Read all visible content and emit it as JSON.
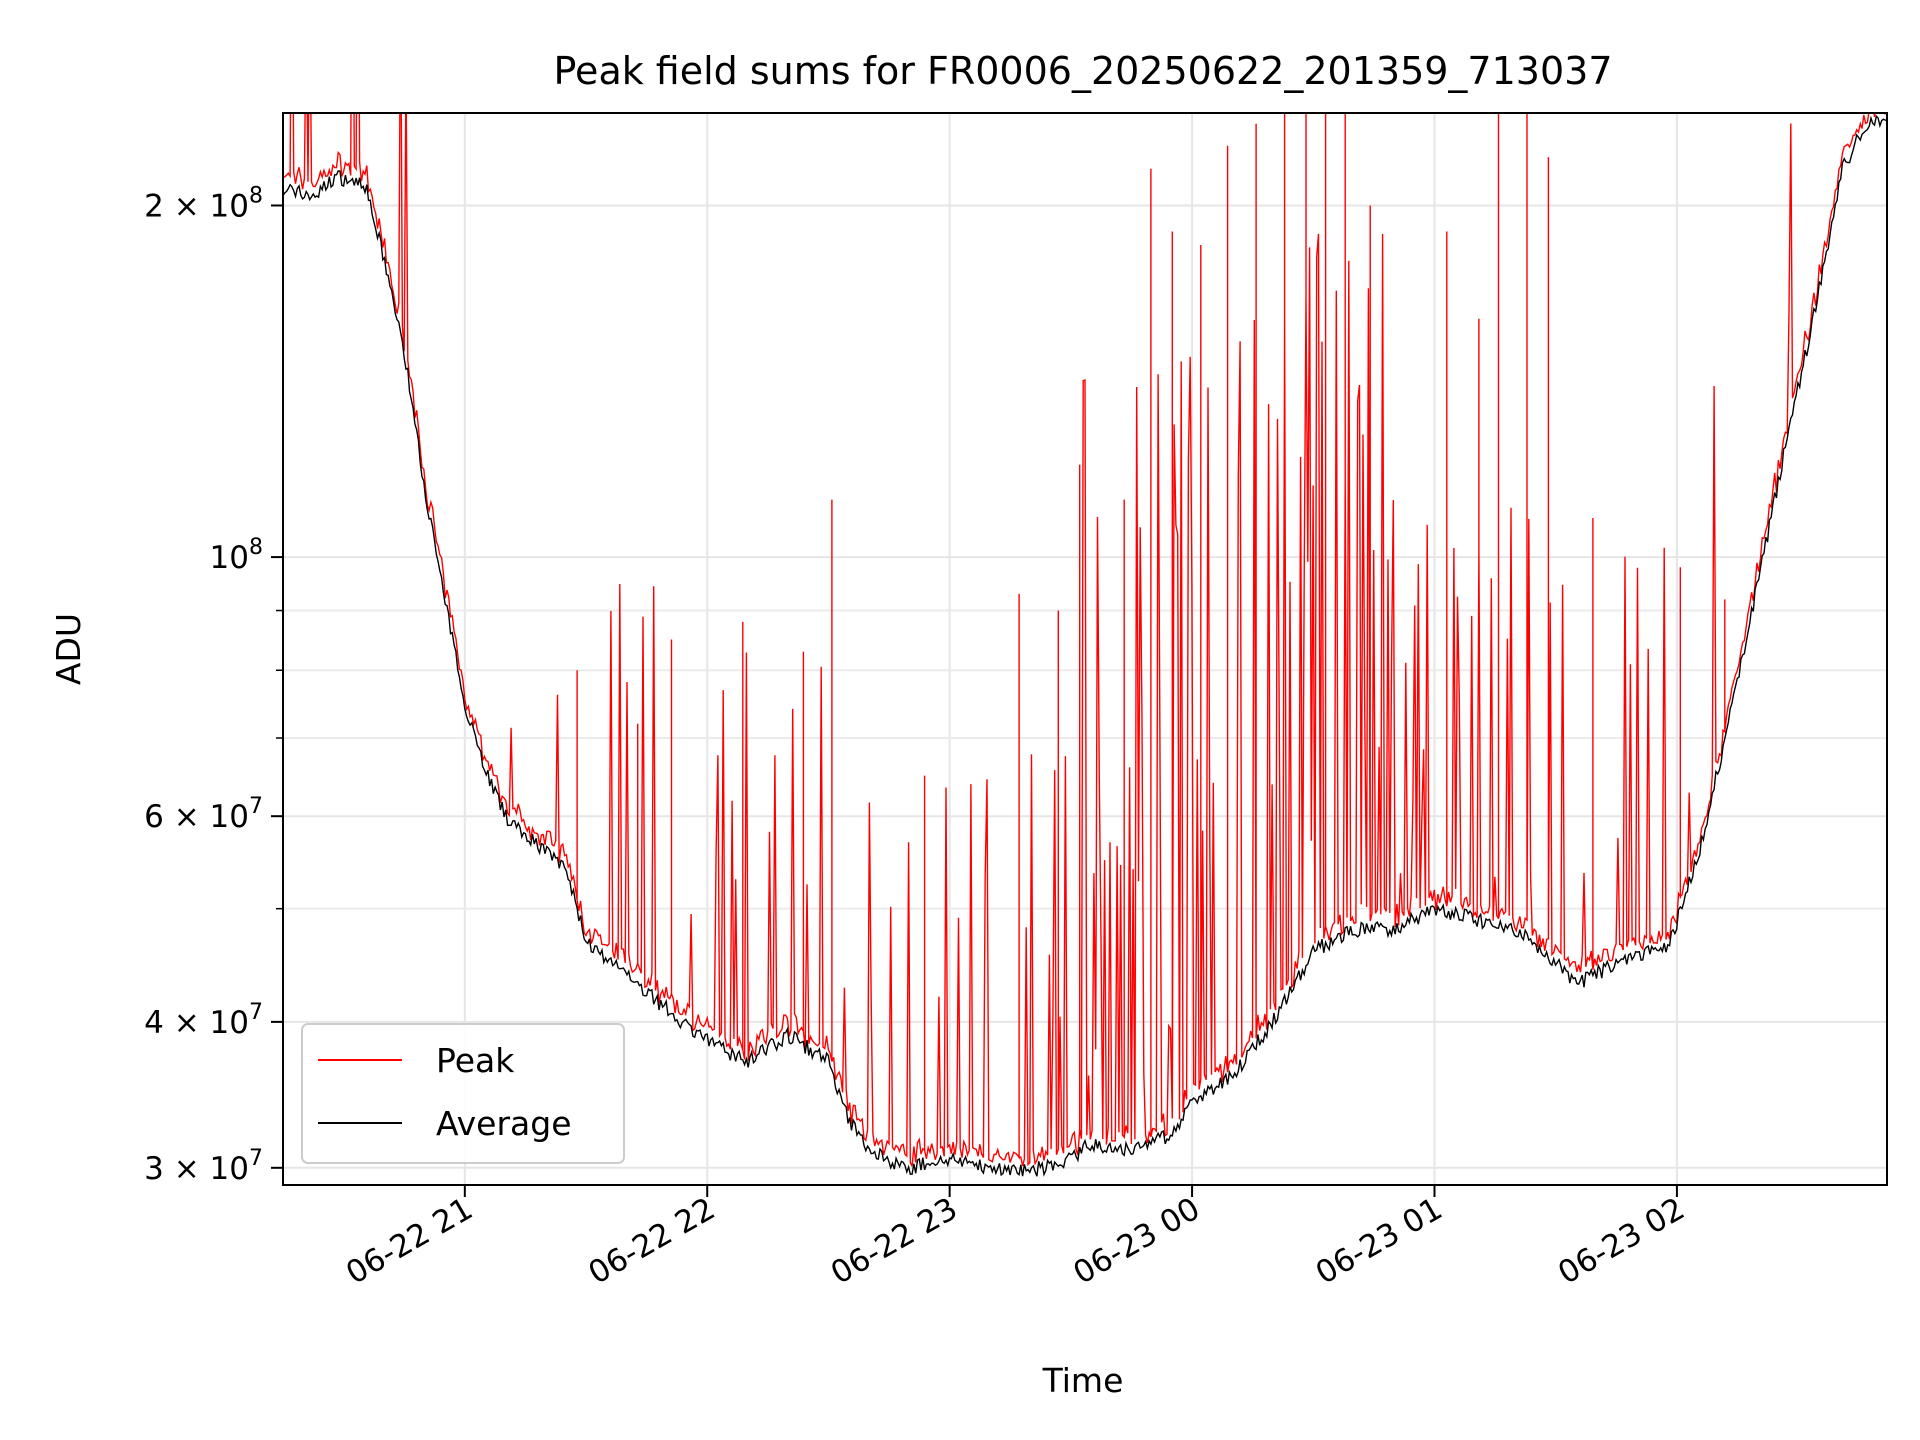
{
  "chart_data": {
    "type": "line",
    "title": "Peak field sums for FR0006_20250622_201359_713037",
    "xlabel": "Time",
    "ylabel": "ADU",
    "yscale": "log",
    "ylim": [
      29000000,
      240000000
    ],
    "xlim": [
      "2025-06-22 20:15",
      "2025-06-23 02:52"
    ],
    "grid": true,
    "legend_position": "lower-left",
    "x_ticks": [
      {
        "t": "2025-06-22 21:00",
        "label": "06-22 21"
      },
      {
        "t": "2025-06-22 22:00",
        "label": "06-22 22"
      },
      {
        "t": "2025-06-22 23:00",
        "label": "06-22 23"
      },
      {
        "t": "2025-06-23 00:00",
        "label": "06-23 00"
      },
      {
        "t": "2025-06-23 01:00",
        "label": "06-23 01"
      },
      {
        "t": "2025-06-23 02:00",
        "label": "06-23 02"
      }
    ],
    "y_ticks": [
      {
        "value": 30000000,
        "mant": "3",
        "exp": "7"
      },
      {
        "value": 40000000,
        "mant": "4",
        "exp": "7"
      },
      {
        "value": 60000000,
        "mant": "6",
        "exp": "7"
      },
      {
        "value": 100000000,
        "mant": "",
        "exp": "8"
      },
      {
        "value": 200000000,
        "mant": "2",
        "exp": "8"
      }
    ],
    "y_minor_ticks": [
      50000000,
      70000000,
      80000000,
      90000000
    ],
    "series": [
      {
        "name": "Peak",
        "color": "#ff0000",
        "baseline_of": "Average",
        "spikes": [
          [
            "2025-06-22 21:28",
            80000000
          ],
          [
            "2025-06-22 21:43",
            72000000
          ],
          [
            "2025-06-22 21:51",
            85000000
          ],
          [
            "2025-06-22 22:09",
            88000000
          ],
          [
            "2025-06-22 22:24",
            83000000
          ],
          [
            "2025-06-22 22:31",
            112000000
          ],
          [
            "2025-06-22 22:54",
            65000000
          ],
          [
            "2025-06-22 23:17",
            93000000
          ],
          [
            "2025-06-22 23:27",
            90000000
          ],
          [
            "2025-06-22 23:32",
            120000000
          ],
          [
            "2025-06-22 23:43",
            112000000
          ],
          [
            "2025-06-22 23:50",
            215000000
          ],
          [
            "2025-06-22 23:55",
            190000000
          ],
          [
            "2025-06-23 00:02",
            185000000
          ],
          [
            "2025-06-23 00:09",
            225000000
          ],
          [
            "2025-06-23 00:16",
            235000000
          ],
          [
            "2025-06-23 00:23",
            240000000
          ],
          [
            "2025-06-23 00:28",
            240000000
          ],
          [
            "2025-06-23 00:33",
            240000000
          ],
          [
            "2025-06-23 00:38",
            240000000
          ],
          [
            "2025-06-23 00:44",
            200000000
          ],
          [
            "2025-06-23 01:03",
            190000000
          ],
          [
            "2025-06-23 01:11",
            160000000
          ],
          [
            "2025-06-23 01:16",
            240000000
          ],
          [
            "2025-06-23 01:23",
            240000000
          ],
          [
            "2025-06-23 01:28",
            220000000
          ],
          [
            "2025-06-23 01:39",
            108000000
          ],
          [
            "2025-06-23 01:47",
            95000000
          ],
          [
            "2025-06-23 02:01",
            98000000
          ],
          [
            "2025-06-23 02:12",
            92000000
          ]
        ]
      },
      {
        "name": "Average",
        "color": "#000000",
        "points": [
          [
            "2025-06-22 20:15",
            207000000
          ],
          [
            "2025-06-22 20:18",
            206000000
          ],
          [
            "2025-06-22 20:21",
            204000000
          ],
          [
            "2025-06-22 20:24",
            205000000
          ],
          [
            "2025-06-22 20:28",
            212000000
          ],
          [
            "2025-06-22 20:32",
            210000000
          ],
          [
            "2025-06-22 20:35",
            210000000
          ],
          [
            "2025-06-22 20:40",
            180000000
          ],
          [
            "2025-06-22 20:45",
            150000000
          ],
          [
            "2025-06-22 20:50",
            115000000
          ],
          [
            "2025-06-22 20:55",
            92000000
          ],
          [
            "2025-06-22 21:00",
            75000000
          ],
          [
            "2025-06-22 21:05",
            66000000
          ],
          [
            "2025-06-22 21:10",
            60000000
          ],
          [
            "2025-06-22 21:15",
            58000000
          ],
          [
            "2025-06-22 21:20",
            56000000
          ],
          [
            "2025-06-22 21:25",
            54000000
          ],
          [
            "2025-06-22 21:30",
            47000000
          ],
          [
            "2025-06-22 21:35",
            45000000
          ],
          [
            "2025-06-22 21:40",
            44000000
          ],
          [
            "2025-06-22 21:50",
            41000000
          ],
          [
            "2025-06-22 22:00",
            38500000
          ],
          [
            "2025-06-22 22:10",
            37000000
          ],
          [
            "2025-06-22 22:20",
            39000000
          ],
          [
            "2025-06-22 22:30",
            37000000
          ],
          [
            "2025-06-22 22:35",
            33000000
          ],
          [
            "2025-06-22 22:40",
            31000000
          ],
          [
            "2025-06-22 22:50",
            30000000
          ],
          [
            "2025-06-22 23:00",
            30500000
          ],
          [
            "2025-06-22 23:10",
            30000000
          ],
          [
            "2025-06-22 23:20",
            29800000
          ],
          [
            "2025-06-22 23:30",
            30500000
          ],
          [
            "2025-06-22 23:35",
            31500000
          ],
          [
            "2025-06-22 23:45",
            31000000
          ],
          [
            "2025-06-22 23:55",
            32000000
          ],
          [
            "2025-06-23 00:00",
            34000000
          ],
          [
            "2025-06-23 00:10",
            36000000
          ],
          [
            "2025-06-23 00:20",
            40000000
          ],
          [
            "2025-06-23 00:30",
            46000000
          ],
          [
            "2025-06-23 00:40",
            48000000
          ],
          [
            "2025-06-23 00:50",
            48000000
          ],
          [
            "2025-06-23 01:00",
            50000000
          ],
          [
            "2025-06-23 01:10",
            49000000
          ],
          [
            "2025-06-23 01:20",
            48000000
          ],
          [
            "2025-06-23 01:30",
            45000000
          ],
          [
            "2025-06-23 01:35",
            43000000
          ],
          [
            "2025-06-23 01:40",
            44000000
          ],
          [
            "2025-06-23 01:50",
            45500000
          ],
          [
            "2025-06-23 01:58",
            46500000
          ],
          [
            "2025-06-23 02:05",
            55000000
          ],
          [
            "2025-06-23 02:12",
            70000000
          ],
          [
            "2025-06-23 02:20",
            95000000
          ],
          [
            "2025-06-23 02:28",
            130000000
          ],
          [
            "2025-06-23 02:32",
            150000000
          ],
          [
            "2025-06-23 02:36",
            175000000
          ],
          [
            "2025-06-23 02:41",
            215000000
          ],
          [
            "2025-06-23 02:47",
            235000000
          ],
          [
            "2025-06-23 02:52",
            238000000
          ]
        ]
      }
    ]
  }
}
